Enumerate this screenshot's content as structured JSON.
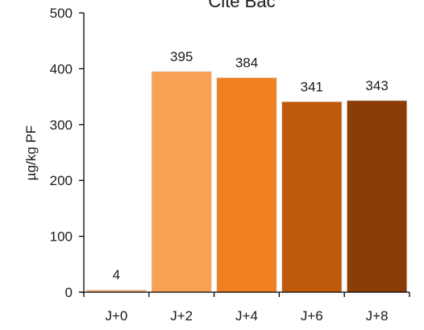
{
  "chart_data": {
    "type": "bar",
    "title": "Cite Bac",
    "xlabel": "",
    "ylabel": "µg/kg PF",
    "ylim": [
      0,
      500
    ],
    "yticks": [
      0,
      100,
      200,
      300,
      400,
      500
    ],
    "grid": false,
    "categories": [
      "J+0",
      "J+2",
      "J+4",
      "J+6",
      "J+8"
    ],
    "values": [
      4,
      395,
      384,
      341,
      343
    ],
    "data_labels": [
      "4",
      "395",
      "384",
      "341",
      "343"
    ],
    "colors": [
      "#f4b183",
      "#f8a155",
      "#f28020",
      "#c05a0b",
      "#8a3e06"
    ]
  }
}
